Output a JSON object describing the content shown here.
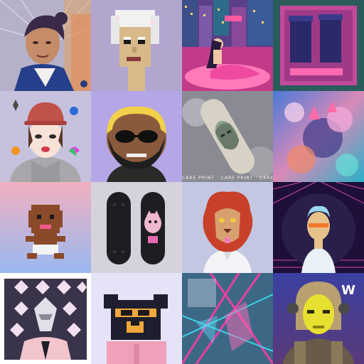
{
  "gallery": {
    "tiles": [
      {
        "subject": "portrait-painting",
        "bg": "#b7b2c9"
      },
      {
        "subject": "pixel-white-hair",
        "bg": "#b3a6cf"
      },
      {
        "subject": "city-mermaid",
        "bg": "#6a4a8a"
      },
      {
        "subject": "pixel-bins",
        "bg": "#2c5d5c"
      },
      {
        "subject": "girl-crypto-icons",
        "bg": "#c7c3df"
      },
      {
        "subject": "bald-sunglasses",
        "bg": "#b5a6e8"
      },
      {
        "subject": "skateboard-deck",
        "bg": "#8c8c93"
      },
      {
        "subject": "abstract-flowers",
        "bg": "#3aa6d6"
      },
      {
        "subject": "pixel-baby",
        "bg": "#e0b5c8"
      },
      {
        "subject": "skateboard-pair",
        "bg": "#d7d3dd"
      },
      {
        "subject": "lion-man",
        "bg": "#c3c7e3"
      },
      {
        "subject": "synthwave-guy",
        "bg": "#20103a"
      },
      {
        "subject": "diamond-pattern",
        "bg": "#f5c9d2"
      },
      {
        "subject": "pixel-bear",
        "bg": "#e4e3f8"
      },
      {
        "subject": "neon-abstract",
        "bg": "#3e6a86"
      },
      {
        "subject": "cyber-yellow-face",
        "bg": "#4a4fa0"
      }
    ],
    "skate_caption": "CARE PRINT · CARE PRINT · CARE PRINT",
    "watermark": "W"
  },
  "colors": {
    "background": "#ffffff"
  }
}
